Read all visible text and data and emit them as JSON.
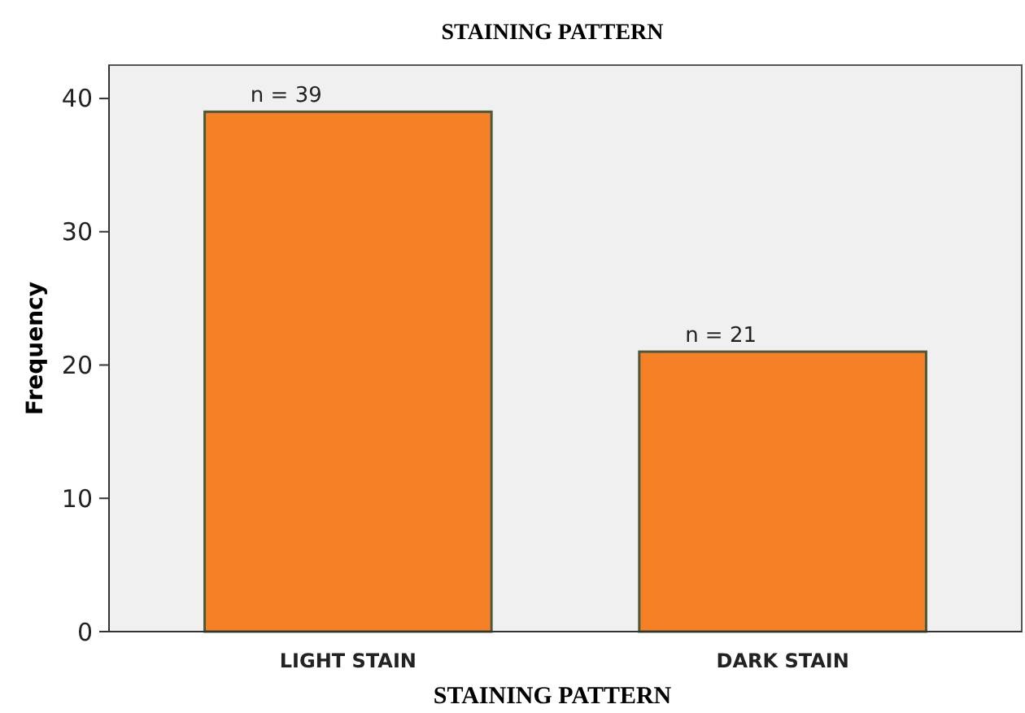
{
  "chart_data": {
    "type": "bar",
    "title": "STAINING PATTERN",
    "xlabel": "STAINING PATTERN",
    "ylabel": "Frequency",
    "categories": [
      "LIGHT STAIN",
      "DARK STAIN"
    ],
    "values": [
      39,
      21
    ],
    "value_labels": [
      "n = 39",
      "n = 21"
    ],
    "color": "#f58025",
    "ylim": [
      0,
      42.5
    ],
    "yticks": [
      0,
      10,
      20,
      30,
      40
    ],
    "grid": false
  }
}
